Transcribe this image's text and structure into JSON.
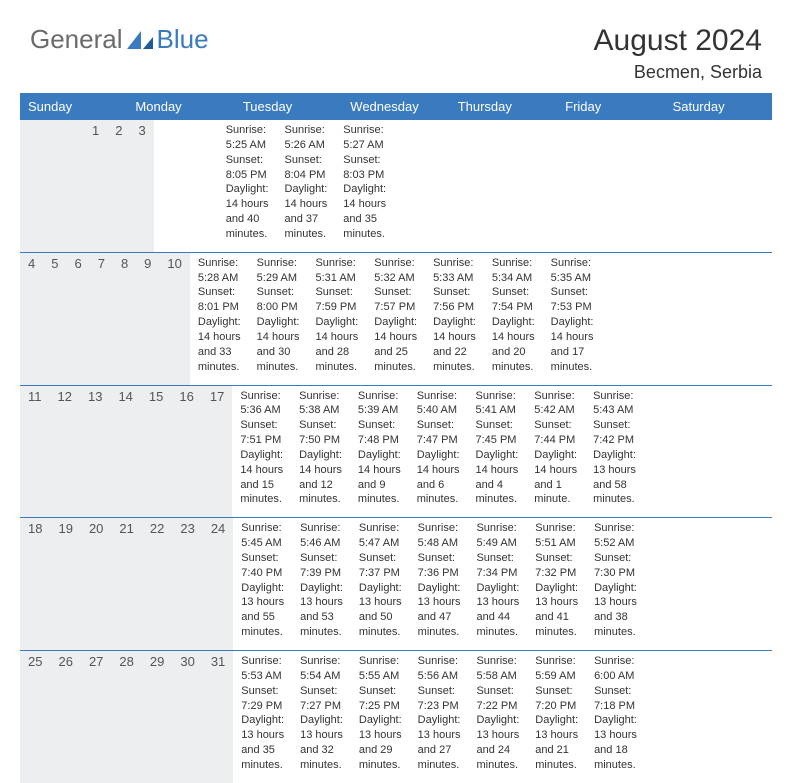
{
  "brand": {
    "part1": "General",
    "part2": "Blue"
  },
  "title": "August 2024",
  "location": "Becmen, Serbia",
  "colors": {
    "header_bg": "#3a7bbf",
    "header_text": "#ffffff",
    "date_row_bg": "#eceeef",
    "border": "#3a7bbf",
    "logo_gray": "#6b6b6b",
    "logo_blue": "#3a7bbf"
  },
  "day_names": [
    "Sunday",
    "Monday",
    "Tuesday",
    "Wednesday",
    "Thursday",
    "Friday",
    "Saturday"
  ],
  "weeks": [
    {
      "dates": [
        "",
        "",
        "",
        "",
        "1",
        "2",
        "3"
      ],
      "cells": [
        {
          "sunrise": "",
          "sunset": "",
          "daylight": ""
        },
        {
          "sunrise": "",
          "sunset": "",
          "daylight": ""
        },
        {
          "sunrise": "",
          "sunset": "",
          "daylight": ""
        },
        {
          "sunrise": "",
          "sunset": "",
          "daylight": ""
        },
        {
          "sunrise": "Sunrise: 5:25 AM",
          "sunset": "Sunset: 8:05 PM",
          "daylight": "Daylight: 14 hours and 40 minutes."
        },
        {
          "sunrise": "Sunrise: 5:26 AM",
          "sunset": "Sunset: 8:04 PM",
          "daylight": "Daylight: 14 hours and 37 minutes."
        },
        {
          "sunrise": "Sunrise: 5:27 AM",
          "sunset": "Sunset: 8:03 PM",
          "daylight": "Daylight: 14 hours and 35 minutes."
        }
      ]
    },
    {
      "dates": [
        "4",
        "5",
        "6",
        "7",
        "8",
        "9",
        "10"
      ],
      "cells": [
        {
          "sunrise": "Sunrise: 5:28 AM",
          "sunset": "Sunset: 8:01 PM",
          "daylight": "Daylight: 14 hours and 33 minutes."
        },
        {
          "sunrise": "Sunrise: 5:29 AM",
          "sunset": "Sunset: 8:00 PM",
          "daylight": "Daylight: 14 hours and 30 minutes."
        },
        {
          "sunrise": "Sunrise: 5:31 AM",
          "sunset": "Sunset: 7:59 PM",
          "daylight": "Daylight: 14 hours and 28 minutes."
        },
        {
          "sunrise": "Sunrise: 5:32 AM",
          "sunset": "Sunset: 7:57 PM",
          "daylight": "Daylight: 14 hours and 25 minutes."
        },
        {
          "sunrise": "Sunrise: 5:33 AM",
          "sunset": "Sunset: 7:56 PM",
          "daylight": "Daylight: 14 hours and 22 minutes."
        },
        {
          "sunrise": "Sunrise: 5:34 AM",
          "sunset": "Sunset: 7:54 PM",
          "daylight": "Daylight: 14 hours and 20 minutes."
        },
        {
          "sunrise": "Sunrise: 5:35 AM",
          "sunset": "Sunset: 7:53 PM",
          "daylight": "Daylight: 14 hours and 17 minutes."
        }
      ]
    },
    {
      "dates": [
        "11",
        "12",
        "13",
        "14",
        "15",
        "16",
        "17"
      ],
      "cells": [
        {
          "sunrise": "Sunrise: 5:36 AM",
          "sunset": "Sunset: 7:51 PM",
          "daylight": "Daylight: 14 hours and 15 minutes."
        },
        {
          "sunrise": "Sunrise: 5:38 AM",
          "sunset": "Sunset: 7:50 PM",
          "daylight": "Daylight: 14 hours and 12 minutes."
        },
        {
          "sunrise": "Sunrise: 5:39 AM",
          "sunset": "Sunset: 7:48 PM",
          "daylight": "Daylight: 14 hours and 9 minutes."
        },
        {
          "sunrise": "Sunrise: 5:40 AM",
          "sunset": "Sunset: 7:47 PM",
          "daylight": "Daylight: 14 hours and 6 minutes."
        },
        {
          "sunrise": "Sunrise: 5:41 AM",
          "sunset": "Sunset: 7:45 PM",
          "daylight": "Daylight: 14 hours and 4 minutes."
        },
        {
          "sunrise": "Sunrise: 5:42 AM",
          "sunset": "Sunset: 7:44 PM",
          "daylight": "Daylight: 14 hours and 1 minute."
        },
        {
          "sunrise": "Sunrise: 5:43 AM",
          "sunset": "Sunset: 7:42 PM",
          "daylight": "Daylight: 13 hours and 58 minutes."
        }
      ]
    },
    {
      "dates": [
        "18",
        "19",
        "20",
        "21",
        "22",
        "23",
        "24"
      ],
      "cells": [
        {
          "sunrise": "Sunrise: 5:45 AM",
          "sunset": "Sunset: 7:40 PM",
          "daylight": "Daylight: 13 hours and 55 minutes."
        },
        {
          "sunrise": "Sunrise: 5:46 AM",
          "sunset": "Sunset: 7:39 PM",
          "daylight": "Daylight: 13 hours and 53 minutes."
        },
        {
          "sunrise": "Sunrise: 5:47 AM",
          "sunset": "Sunset: 7:37 PM",
          "daylight": "Daylight: 13 hours and 50 minutes."
        },
        {
          "sunrise": "Sunrise: 5:48 AM",
          "sunset": "Sunset: 7:36 PM",
          "daylight": "Daylight: 13 hours and 47 minutes."
        },
        {
          "sunrise": "Sunrise: 5:49 AM",
          "sunset": "Sunset: 7:34 PM",
          "daylight": "Daylight: 13 hours and 44 minutes."
        },
        {
          "sunrise": "Sunrise: 5:51 AM",
          "sunset": "Sunset: 7:32 PM",
          "daylight": "Daylight: 13 hours and 41 minutes."
        },
        {
          "sunrise": "Sunrise: 5:52 AM",
          "sunset": "Sunset: 7:30 PM",
          "daylight": "Daylight: 13 hours and 38 minutes."
        }
      ]
    },
    {
      "dates": [
        "25",
        "26",
        "27",
        "28",
        "29",
        "30",
        "31"
      ],
      "cells": [
        {
          "sunrise": "Sunrise: 5:53 AM",
          "sunset": "Sunset: 7:29 PM",
          "daylight": "Daylight: 13 hours and 35 minutes."
        },
        {
          "sunrise": "Sunrise: 5:54 AM",
          "sunset": "Sunset: 7:27 PM",
          "daylight": "Daylight: 13 hours and 32 minutes."
        },
        {
          "sunrise": "Sunrise: 5:55 AM",
          "sunset": "Sunset: 7:25 PM",
          "daylight": "Daylight: 13 hours and 29 minutes."
        },
        {
          "sunrise": "Sunrise: 5:56 AM",
          "sunset": "Sunset: 7:23 PM",
          "daylight": "Daylight: 13 hours and 27 minutes."
        },
        {
          "sunrise": "Sunrise: 5:58 AM",
          "sunset": "Sunset: 7:22 PM",
          "daylight": "Daylight: 13 hours and 24 minutes."
        },
        {
          "sunrise": "Sunrise: 5:59 AM",
          "sunset": "Sunset: 7:20 PM",
          "daylight": "Daylight: 13 hours and 21 minutes."
        },
        {
          "sunrise": "Sunrise: 6:00 AM",
          "sunset": "Sunset: 7:18 PM",
          "daylight": "Daylight: 13 hours and 18 minutes."
        }
      ]
    }
  ]
}
